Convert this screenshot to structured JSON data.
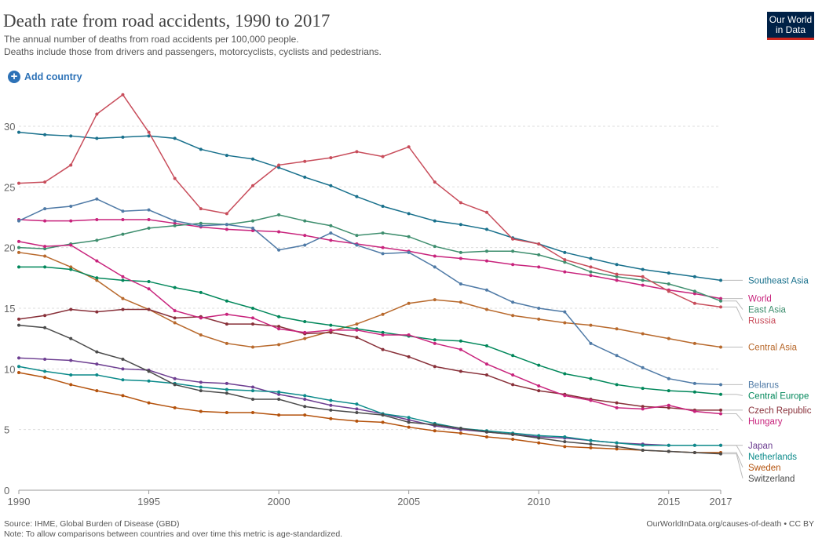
{
  "header": {
    "title": "Death rate from road accidents, 1990 to 2017",
    "subtitle_line1": "The annual number of deaths from road accidents per 100,000 people.",
    "subtitle_line2": "Deaths include those from drivers and passengers, motorcyclists, cyclists and pedestrians.",
    "logo_line1": "Our World",
    "logo_line2": "in Data"
  },
  "controls": {
    "add_country_label": "Add country",
    "add_icon": "plus-circle-icon"
  },
  "footer": {
    "source": "Source: IHME, Global Burden of Disease (GBD)",
    "note": "Note: To allow comparisons between countries and over time this metric is age-standardized.",
    "credit": "OurWorldInData.org/causes-of-death • CC BY"
  },
  "colors": {
    "brand_navy": "#002147",
    "brand_red": "#ce261e",
    "link_blue": "#2d72b7"
  },
  "chart_data": {
    "type": "line",
    "x": [
      1990,
      1991,
      1992,
      1993,
      1994,
      1995,
      1996,
      1997,
      1998,
      1999,
      2000,
      2001,
      2002,
      2003,
      2004,
      2005,
      2006,
      2007,
      2008,
      2009,
      2010,
      2011,
      2012,
      2013,
      2014,
      2015,
      2016,
      2017
    ],
    "xlim": [
      1990,
      2017
    ],
    "ylim": [
      0,
      32
    ],
    "x_ticks": [
      1990,
      1995,
      2000,
      2005,
      2010,
      2015,
      2017
    ],
    "y_ticks": [
      0,
      5,
      10,
      15,
      20,
      25,
      30
    ],
    "grid": true,
    "legend_placement": "right-end labels",
    "series": [
      {
        "name": "Southeast Asia",
        "color": "#18708c",
        "values": [
          29.5,
          29.3,
          29.2,
          29.0,
          29.1,
          29.2,
          29.0,
          28.1,
          27.6,
          27.3,
          26.6,
          25.8,
          25.1,
          24.2,
          23.4,
          22.8,
          22.2,
          21.9,
          21.5,
          20.8,
          20.3,
          19.6,
          19.1,
          18.6,
          18.2,
          17.9,
          17.6,
          17.3
        ]
      },
      {
        "name": "World",
        "color": "#c8237c",
        "values": [
          22.3,
          22.2,
          22.2,
          22.3,
          22.3,
          22.3,
          22.0,
          21.7,
          21.5,
          21.4,
          21.3,
          21.0,
          20.6,
          20.3,
          20.0,
          19.7,
          19.3,
          19.1,
          18.9,
          18.6,
          18.4,
          18.0,
          17.7,
          17.3,
          16.9,
          16.5,
          16.2,
          15.8
        ]
      },
      {
        "name": "East Asia",
        "color": "#3e8e6e",
        "values": [
          20.0,
          19.9,
          20.3,
          20.6,
          21.1,
          21.6,
          21.8,
          22.0,
          21.9,
          22.2,
          22.7,
          22.2,
          21.8,
          21.0,
          21.2,
          20.9,
          20.1,
          19.6,
          19.7,
          19.7,
          19.4,
          18.8,
          18.0,
          17.6,
          17.3,
          17.0,
          16.4,
          15.6
        ]
      },
      {
        "name": "Russia",
        "color": "#c84d5b",
        "values": [
          25.3,
          25.4,
          26.8,
          31.0,
          32.6,
          29.5,
          25.7,
          23.2,
          22.8,
          25.1,
          26.8,
          27.1,
          27.4,
          27.9,
          27.5,
          28.3,
          25.4,
          23.7,
          22.9,
          20.7,
          20.3,
          19.0,
          18.4,
          17.8,
          17.6,
          16.4,
          15.4,
          15.1
        ]
      },
      {
        "name": "Central Asia",
        "color": "#b8692c",
        "values": [
          19.6,
          19.3,
          18.4,
          17.3,
          15.8,
          14.9,
          13.8,
          12.8,
          12.1,
          11.8,
          12.0,
          12.5,
          13.1,
          13.7,
          14.5,
          15.4,
          15.7,
          15.5,
          14.9,
          14.4,
          14.1,
          13.8,
          13.6,
          13.3,
          12.9,
          12.5,
          12.1,
          11.8
        ]
      },
      {
        "name": "Belarus",
        "color": "#4f7aa6",
        "values": [
          22.2,
          23.2,
          23.4,
          24.0,
          23.0,
          23.1,
          22.2,
          21.8,
          21.9,
          21.6,
          19.8,
          20.2,
          21.2,
          20.2,
          19.5,
          19.6,
          18.4,
          17.0,
          16.5,
          15.5,
          15.0,
          14.7,
          12.1,
          11.1,
          10.1,
          9.2,
          8.8,
          8.7
        ]
      },
      {
        "name": "Central Europe",
        "color": "#00875a",
        "values": [
          18.4,
          18.4,
          18.2,
          17.5,
          17.3,
          17.2,
          16.7,
          16.3,
          15.6,
          15.0,
          14.3,
          13.9,
          13.6,
          13.3,
          13.0,
          12.7,
          12.4,
          12.3,
          11.9,
          11.1,
          10.3,
          9.6,
          9.2,
          8.7,
          8.4,
          8.2,
          8.1,
          7.9
        ]
      },
      {
        "name": "Czech Republic",
        "color": "#883039",
        "values": [
          14.1,
          14.4,
          14.9,
          14.7,
          14.9,
          14.9,
          14.2,
          14.3,
          13.7,
          13.7,
          13.5,
          12.9,
          13.0,
          12.6,
          11.6,
          11.0,
          10.2,
          9.8,
          9.5,
          8.7,
          8.2,
          7.9,
          7.5,
          7.2,
          6.9,
          6.8,
          6.6,
          6.6
        ]
      },
      {
        "name": "Hungary",
        "color": "#c8237c",
        "values": [
          20.5,
          20.1,
          20.2,
          18.9,
          17.6,
          16.6,
          14.8,
          14.2,
          14.5,
          14.2,
          13.3,
          13.0,
          13.2,
          13.2,
          12.8,
          12.8,
          12.1,
          11.6,
          10.4,
          9.5,
          8.6,
          7.8,
          7.4,
          6.8,
          6.7,
          7.0,
          6.5,
          6.3
        ]
      },
      {
        "name": "Japan",
        "color": "#6d3e91",
        "values": [
          10.9,
          10.8,
          10.7,
          10.4,
          10.0,
          9.9,
          9.2,
          8.9,
          8.8,
          8.5,
          7.9,
          7.5,
          7.0,
          6.7,
          6.3,
          5.8,
          5.3,
          5.0,
          4.8,
          4.6,
          4.4,
          4.3,
          4.1,
          3.9,
          3.8,
          3.7,
          3.7,
          3.7
        ]
      },
      {
        "name": "Netherlands",
        "color": "#0b8a8a",
        "values": [
          10.2,
          9.8,
          9.5,
          9.5,
          9.1,
          9.0,
          8.8,
          8.5,
          8.3,
          8.2,
          8.1,
          7.8,
          7.4,
          7.1,
          6.3,
          6.0,
          5.5,
          5.1,
          4.9,
          4.7,
          4.5,
          4.4,
          4.1,
          3.9,
          3.7,
          3.7,
          3.7,
          3.7
        ]
      },
      {
        "name": "Sweden",
        "color": "#b4520c",
        "values": [
          9.7,
          9.3,
          8.7,
          8.2,
          7.8,
          7.2,
          6.8,
          6.5,
          6.4,
          6.4,
          6.2,
          6.2,
          5.9,
          5.7,
          5.6,
          5.2,
          4.9,
          4.7,
          4.4,
          4.2,
          3.9,
          3.6,
          3.5,
          3.4,
          3.3,
          3.2,
          3.1,
          3.1
        ]
      },
      {
        "name": "Switzerland",
        "color": "#4b4b4b",
        "values": [
          13.6,
          13.4,
          12.5,
          11.4,
          10.8,
          9.8,
          8.7,
          8.2,
          8.0,
          7.5,
          7.5,
          6.9,
          6.6,
          6.4,
          6.2,
          5.6,
          5.4,
          5.1,
          4.8,
          4.6,
          4.3,
          4.0,
          3.8,
          3.6,
          3.3,
          3.2,
          3.1,
          3.0
        ]
      }
    ]
  }
}
